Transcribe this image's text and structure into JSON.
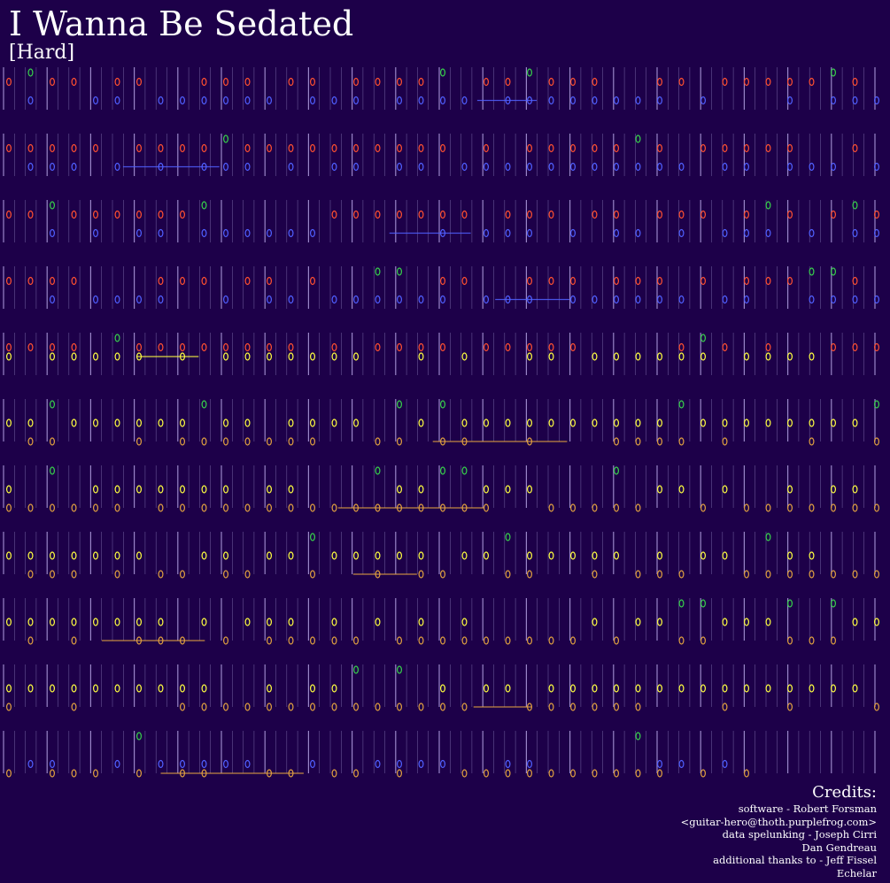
{
  "song": {
    "title": "I Wanna Be Sedated",
    "difficulty": "[Hard]"
  },
  "credits": {
    "heading": "Credits:",
    "lines": [
      "software - Robert Forsman",
      "<guitar-hero@thoth.purplefrog.com>",
      "data spelunking - Joseph Cirri",
      "Dan Gendreau",
      "additional thanks to - Jeff Fissel",
      "Echelar"
    ]
  },
  "colors": {
    "background": "#1d0049",
    "green": "#37d24b",
    "red": "#ff5030",
    "yellow": "#ffff40",
    "blue": "#5060ff",
    "orange": "#e0a040",
    "beat_line": "#7a6aa8"
  },
  "lanes": [
    "green",
    "red",
    "yellow",
    "blue",
    "orange"
  ],
  "staff_count": 11
}
